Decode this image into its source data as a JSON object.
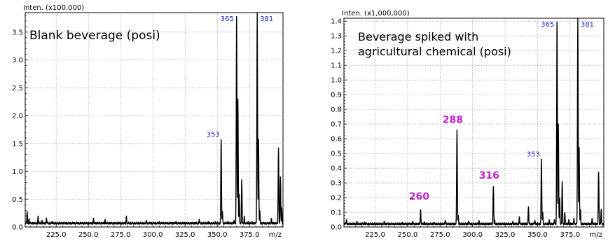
{
  "colors": {
    "spectrum": "#000000",
    "peak_label": "#1f1fd1",
    "highlight_label": "#c020c8",
    "grid": "#8a8a8a"
  },
  "chart_data": [
    {
      "type": "line",
      "title": "Blank beverage (posi)",
      "title_lines": [
        "Blank beverage (posi)"
      ],
      "ylabel": "Inten. (x100,000)",
      "xlabel": "m/z",
      "xlim": [
        201,
        401
      ],
      "ylim": [
        0,
        3.85
      ],
      "xticks": [
        225,
        250,
        275,
        300,
        325,
        350,
        375
      ],
      "xtick_labels": [
        "225.0",
        "250.0",
        "275.0",
        "300.0",
        "325.0",
        "350.0",
        "375.0"
      ],
      "yticks": [
        0.5,
        1.0,
        1.5,
        2.0,
        2.5,
        3.0,
        3.5
      ],
      "ytick_labels": [
        "0.5",
        "1.0",
        "1.5",
        "2.0",
        "2.5",
        "3.0",
        "3.5"
      ],
      "y_zero_label": "0.0",
      "grid": true,
      "baseline": 0.05,
      "peaks": [
        [
          202.5,
          0.28
        ],
        [
          204,
          0.15
        ],
        [
          211,
          0.2
        ],
        [
          214,
          0.12
        ],
        [
          217.5,
          0.16
        ],
        [
          222,
          0.1
        ],
        [
          254,
          0.16
        ],
        [
          263,
          0.14
        ],
        [
          279.5,
          0.2
        ],
        [
          295,
          0.12
        ],
        [
          305,
          0.1
        ],
        [
          318,
          0.1
        ],
        [
          336,
          0.14
        ],
        [
          343,
          0.1
        ],
        [
          348.5,
          0.1
        ],
        [
          353,
          1.6
        ],
        [
          354,
          0.28
        ],
        [
          358,
          0.1
        ],
        [
          363,
          0.12
        ],
        [
          365,
          3.85
        ],
        [
          366,
          2.3
        ],
        [
          367,
          0.6
        ],
        [
          369,
          0.85
        ],
        [
          371,
          0.2
        ],
        [
          374,
          0.1
        ],
        [
          377,
          0.1
        ],
        [
          381,
          3.85
        ],
        [
          382,
          1.6
        ],
        [
          383,
          0.3
        ],
        [
          392,
          0.16
        ],
        [
          397.5,
          1.42
        ],
        [
          399,
          0.9
        ],
        [
          400,
          0.35
        ]
      ],
      "peak_labels": [
        {
          "x": 365,
          "y": 3.85,
          "text": "365"
        },
        {
          "x": 381,
          "y": 3.85,
          "text": "381"
        },
        {
          "x": 353,
          "y": 1.6,
          "text": "353"
        }
      ]
    },
    {
      "type": "line",
      "title": "Beverage spiked with agricultural chemical (posi)",
      "title_lines": [
        "Beverage spiked with",
        "agricultural chemical (posi)"
      ],
      "ylabel": "Inten. (x1,000,000)",
      "xlabel": "m/z",
      "xlim": [
        201,
        401
      ],
      "ylim": [
        0,
        1.42
      ],
      "xticks": [
        225,
        250,
        275,
        300,
        325,
        350,
        375
      ],
      "xtick_labels": [
        "225.0",
        "250.0",
        "275.0",
        "300.0",
        "325.0",
        "350.0",
        "375.0"
      ],
      "yticks": [
        0.1,
        0.2,
        0.3,
        0.4,
        0.5,
        0.6,
        0.7,
        0.8,
        0.9,
        1.0,
        1.1,
        1.2,
        1.3,
        1.4
      ],
      "ytick_labels": [
        "0.1",
        "0.2",
        "0.3",
        "0.4",
        "0.5",
        "0.6",
        "0.7",
        "0.8",
        "0.9",
        "1.0",
        "1.1",
        "1.2",
        "1.3",
        "1.4"
      ],
      "y_zero_label": "0.0",
      "grid": true,
      "baseline": 0.015,
      "peaks": [
        [
          203,
          0.05
        ],
        [
          211,
          0.04
        ],
        [
          217,
          0.035
        ],
        [
          232,
          0.04
        ],
        [
          246,
          0.03
        ],
        [
          254,
          0.04
        ],
        [
          260,
          0.12
        ],
        [
          263,
          0.035
        ],
        [
          270,
          0.03
        ],
        [
          279,
          0.045
        ],
        [
          288,
          0.66
        ],
        [
          289,
          0.08
        ],
        [
          297,
          0.04
        ],
        [
          305,
          0.045
        ],
        [
          316,
          0.28
        ],
        [
          317,
          0.05
        ],
        [
          331,
          0.04
        ],
        [
          336,
          0.07
        ],
        [
          343,
          0.14
        ],
        [
          348,
          0.045
        ],
        [
          353,
          0.47
        ],
        [
          354,
          0.1
        ],
        [
          359,
          0.05
        ],
        [
          363,
          0.05
        ],
        [
          365,
          1.42
        ],
        [
          366,
          0.7
        ],
        [
          367,
          0.2
        ],
        [
          369,
          0.31
        ],
        [
          371,
          0.1
        ],
        [
          374,
          0.05
        ],
        [
          378,
          0.06
        ],
        [
          381,
          1.42
        ],
        [
          382,
          0.55
        ],
        [
          383,
          0.12
        ],
        [
          392,
          0.06
        ],
        [
          397,
          0.38
        ],
        [
          399,
          0.12
        ]
      ],
      "peak_labels": [
        {
          "x": 365,
          "y": 1.42,
          "text": "365"
        },
        {
          "x": 381,
          "y": 1.42,
          "text": "381"
        },
        {
          "x": 353,
          "y": 0.47,
          "text": "353"
        }
      ],
      "highlight_labels": [
        {
          "x": 288,
          "y": 0.66,
          "text": "288"
        },
        {
          "x": 316,
          "y": 0.28,
          "text": "316"
        },
        {
          "x": 260,
          "y": 0.12,
          "text": "260"
        }
      ]
    }
  ]
}
